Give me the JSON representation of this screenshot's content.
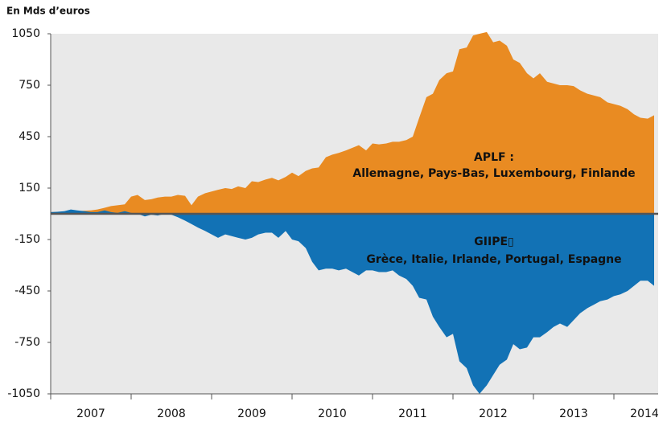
{
  "chart_data": {
    "type": "area",
    "y_label": "En Mds d’euros",
    "annotations": [
      "APLF :",
      "Allemagne, Pays-Bas, Luxembourg, Finlande",
      "GIIPE▯",
      "Grèce, Italie, Irlande, Portugal, Espagne"
    ],
    "x": [
      2007,
      2007.08,
      2007.17,
      2007.25,
      2007.33,
      2007.42,
      2007.5,
      2007.58,
      2007.67,
      2007.75,
      2007.83,
      2007.92,
      2008,
      2008.08,
      2008.17,
      2008.25,
      2008.33,
      2008.42,
      2008.5,
      2008.58,
      2008.67,
      2008.75,
      2008.83,
      2008.92,
      2009,
      2009.08,
      2009.17,
      2009.25,
      2009.33,
      2009.42,
      2009.5,
      2009.58,
      2009.67,
      2009.75,
      2009.83,
      2009.92,
      2010,
      2010.08,
      2010.17,
      2010.25,
      2010.33,
      2010.42,
      2010.5,
      2010.58,
      2010.67,
      2010.75,
      2010.83,
      2010.92,
      2011,
      2011.08,
      2011.17,
      2011.25,
      2011.33,
      2011.42,
      2011.5,
      2011.58,
      2011.67,
      2011.75,
      2011.83,
      2011.92,
      2012,
      2012.08,
      2012.17,
      2012.25,
      2012.33,
      2012.42,
      2012.5,
      2012.58,
      2012.67,
      2012.75,
      2012.83,
      2012.92,
      2013,
      2013.08,
      2013.17,
      2013.25,
      2013.33,
      2013.42,
      2013.5,
      2013.58,
      2013.67,
      2013.75,
      2013.83,
      2013.92,
      2014,
      2014.08,
      2014.17,
      2014.25,
      2014.33,
      2014.42,
      2014.5
    ],
    "series": [
      {
        "name": "APLF",
        "color": "#e98b22",
        "values": [
          10,
          10,
          12,
          15,
          15,
          18,
          20,
          25,
          35,
          45,
          50,
          55,
          100,
          110,
          80,
          85,
          95,
          100,
          100,
          110,
          105,
          50,
          100,
          120,
          130,
          140,
          150,
          145,
          160,
          150,
          190,
          185,
          200,
          210,
          195,
          215,
          240,
          220,
          250,
          265,
          270,
          330,
          345,
          355,
          370,
          385,
          400,
          370,
          410,
          405,
          410,
          420,
          420,
          430,
          450,
          560,
          680,
          700,
          780,
          820,
          830,
          960,
          970,
          1040,
          1050,
          1060,
          1000,
          1010,
          980,
          900,
          880,
          820,
          790,
          820,
          770,
          760,
          750,
          750,
          745,
          720,
          700,
          690,
          680,
          650,
          640,
          630,
          610,
          580,
          560,
          555,
          575
        ]
      },
      {
        "name": "GIIPE",
        "color": "#0a6db3",
        "values": [
          10,
          12,
          15,
          25,
          20,
          15,
          10,
          10,
          20,
          10,
          5,
          15,
          5,
          0,
          -15,
          -5,
          -10,
          0,
          -5,
          -20,
          -40,
          -60,
          -80,
          -100,
          -120,
          -140,
          -120,
          -130,
          -140,
          -150,
          -140,
          -120,
          -110,
          -110,
          -140,
          -100,
          -150,
          -160,
          -200,
          -280,
          -330,
          -320,
          -320,
          -330,
          -320,
          -340,
          -360,
          -330,
          -330,
          -340,
          -340,
          -330,
          -360,
          -380,
          -420,
          -490,
          -500,
          -600,
          -660,
          -720,
          -700,
          -860,
          -900,
          -1000,
          -1050,
          -1000,
          -940,
          -880,
          -850,
          -760,
          -790,
          -780,
          -720,
          -720,
          -690,
          -660,
          -640,
          -660,
          -620,
          -580,
          -550,
          -530,
          -510,
          -500,
          -480,
          -470,
          -450,
          -420,
          -390,
          -390,
          -420
        ]
      }
    ],
    "xlim": [
      2007,
      2014.55
    ],
    "xticks": [
      2007,
      2008,
      2009,
      2010,
      2011,
      2012,
      2013,
      2014
    ],
    "ylim": [
      -1050,
      1050
    ],
    "yticks": [
      1050,
      750,
      450,
      150,
      -150,
      -450,
      -750,
      -1050
    ]
  }
}
